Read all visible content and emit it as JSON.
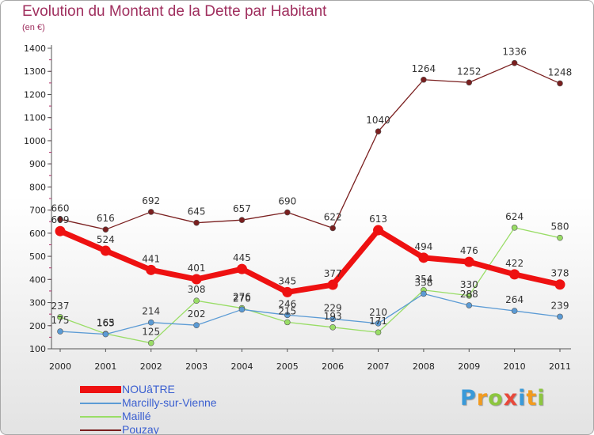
{
  "header": {
    "title": "Evolution du Montant de la Dette par Habitant",
    "subtitle": "(en €)"
  },
  "logo": {
    "text": "Proxiti",
    "letters": [
      "P",
      "r",
      "o",
      "x",
      "i",
      "t",
      "i"
    ],
    "colors": [
      "#3a9ad9",
      "#f29b1f",
      "#8cc63f",
      "#e8493b",
      "#3a9ad9",
      "#f29b1f",
      "#8cc63f"
    ]
  },
  "chart_data": {
    "type": "line",
    "title": "Evolution du Montant de la Dette par Habitant",
    "subtitle": "(en €)",
    "xlabel": "",
    "ylabel": "",
    "ylim": [
      100,
      1400
    ],
    "yticks": [
      100,
      200,
      300,
      400,
      500,
      600,
      700,
      800,
      900,
      1000,
      1100,
      1200,
      1300,
      1400
    ],
    "grid": false,
    "legend_position": "bottom-left",
    "categories": [
      "2000",
      "2001",
      "2002",
      "2003",
      "2004",
      "2005",
      "2006",
      "2007",
      "2008",
      "2009",
      "2010",
      "2011"
    ],
    "series": [
      {
        "name": "NOUâTRE",
        "color": "#ee1111",
        "values": [
          609,
          524,
          441,
          401,
          445,
          345,
          377,
          613,
          494,
          476,
          422,
          378
        ],
        "labels": [
          "609",
          "524",
          "441",
          "401",
          "445",
          "345",
          "377",
          "613",
          "494",
          "476",
          "422",
          "378"
        ]
      },
      {
        "name": "Marcilly-sur-Vienne",
        "color": "#5b9bd5",
        "values": [
          175,
          163,
          214,
          202,
          270,
          246,
          229,
          210,
          338,
          288,
          264,
          239
        ],
        "labels": [
          "175",
          "163",
          "214",
          "202",
          "270",
          "246",
          "229",
          "210",
          "338",
          "288",
          "264",
          "239"
        ]
      },
      {
        "name": "Maillé",
        "color": "#99dd66",
        "values": [
          237,
          165,
          125,
          308,
          276,
          215,
          193,
          171,
          354,
          330,
          624,
          580
        ],
        "labels": [
          "237",
          "165",
          "125",
          "308",
          "276",
          "215",
          "193",
          "171",
          "354",
          "330",
          "624",
          "580"
        ]
      },
      {
        "name": "Pouzay",
        "color": "#7a1f1f",
        "values": [
          660,
          616,
          692,
          645,
          657,
          690,
          622,
          1040,
          1264,
          1252,
          1336,
          1248
        ],
        "labels": [
          "660",
          "616",
          "692",
          "645",
          "657",
          "690",
          "622",
          "1040",
          "1264",
          "1252",
          "1336",
          "1248"
        ]
      }
    ]
  }
}
